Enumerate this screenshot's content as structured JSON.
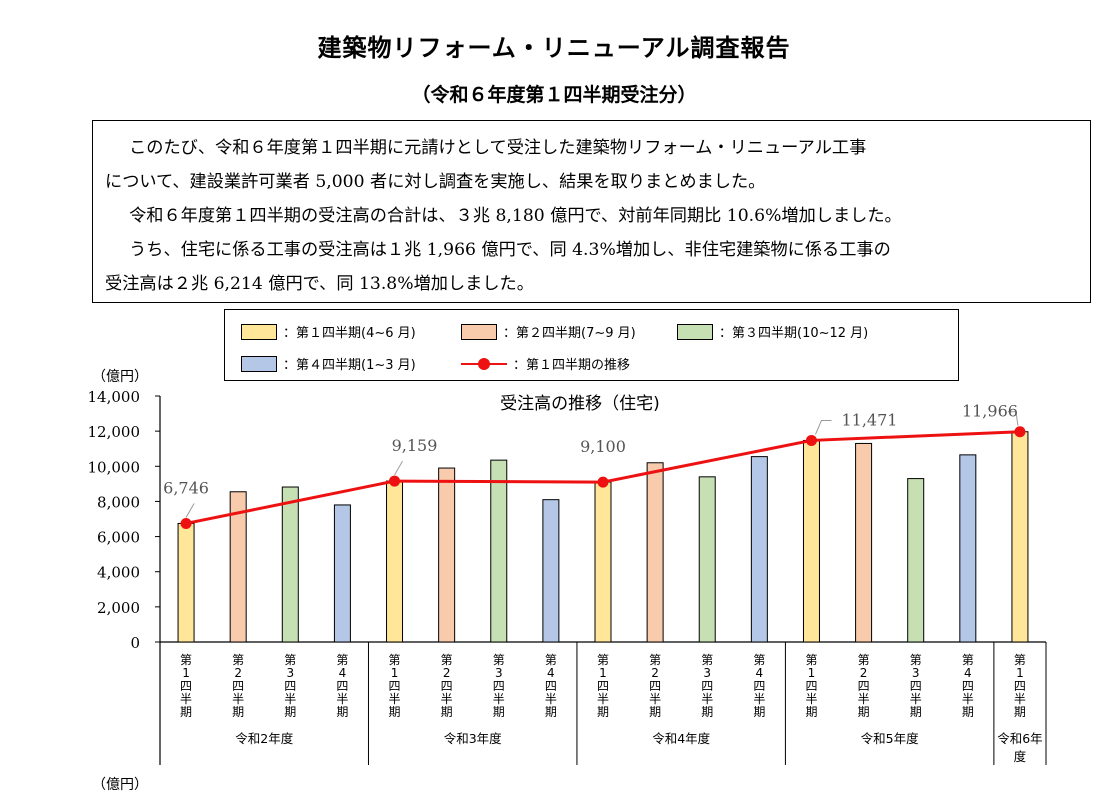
{
  "header": {
    "title": "建築物リフォーム・リニューアル調査報告",
    "subtitle": "（令和６年度第１四半期受注分）"
  },
  "summary": [
    "このたび、令和６年度第１四半期に元請けとして受注した建築物リフォーム・リニューアル工事",
    "について、建設業許可業者 5,000 者に対し調査を実施し、結果を取りまとめました。",
    "令和６年度第１四半期の受注高の合計は、３兆 8,180 億円で、対前年同期比 10.6%増加しました。",
    "うち、住宅に係る工事の受注高は１兆 1,966 億円で、同 4.3%増加し、非住宅建築物に係る工事の",
    "受注高は２兆 6,214 億円で、同 13.8%増加しました。"
  ],
  "legend": [
    {
      "label": "：第１四半期(4~6 月)",
      "color": "#ffe699"
    },
    {
      "label": "：第２四半期(7~9 月)",
      "color": "#f8cbad"
    },
    {
      "label": "：第３四半期(10~12 月)",
      "color": "#c6e0b4"
    },
    {
      "label": "：第４四半期(1~3 月)",
      "color": "#b4c7e7"
    },
    {
      "label": "：第１四半期の推移",
      "color": "#ee1111"
    }
  ],
  "chart_data": {
    "type": "bar",
    "title": "受注高の推移（住宅)",
    "ylabel": "（億円）",
    "ylim": [
      0,
      14000
    ],
    "yticks": [
      "0",
      "2,000",
      "4,000",
      "6,000",
      "8,000",
      "10,000",
      "12,000",
      "14,000"
    ],
    "categories": [
      "第1四半期",
      "第2四半期",
      "第3四半期",
      "第4四半期",
      "第1四半期",
      "第2四半期",
      "第3四半期",
      "第4四半期",
      "第1四半期",
      "第2四半期",
      "第3四半期",
      "第4四半期",
      "第1四半期",
      "第2四半期",
      "第3四半期",
      "第4四半期",
      "第1四半期"
    ],
    "quarter_index": [
      1,
      2,
      3,
      4,
      1,
      2,
      3,
      4,
      1,
      2,
      3,
      4,
      1,
      2,
      3,
      4,
      1
    ],
    "groups": [
      {
        "label": "令和2年度",
        "count": 4
      },
      {
        "label": "令和3年度",
        "count": 4
      },
      {
        "label": "令和4年度",
        "count": 4
      },
      {
        "label": "令和5年度",
        "count": 4
      },
      {
        "label": "令和6年度",
        "count": 1
      }
    ],
    "values": [
      6746,
      8550,
      8820,
      7800,
      9159,
      9900,
      10350,
      8100,
      9100,
      10200,
      9400,
      10550,
      11471,
      11300,
      9300,
      10650,
      11966
    ],
    "line_series": {
      "name": "第１四半期の推移",
      "indices": [
        0,
        4,
        8,
        12,
        16
      ],
      "labels": [
        "6,746",
        "9,159",
        "9,100",
        "11,471",
        "11,966"
      ]
    },
    "colors": {
      "q1": "#ffe699",
      "q2": "#f8cbad",
      "q3": "#c6e0b4",
      "q4": "#b4c7e7",
      "line": "#ee1111"
    }
  },
  "next_chart_ylabel": "（億円）"
}
